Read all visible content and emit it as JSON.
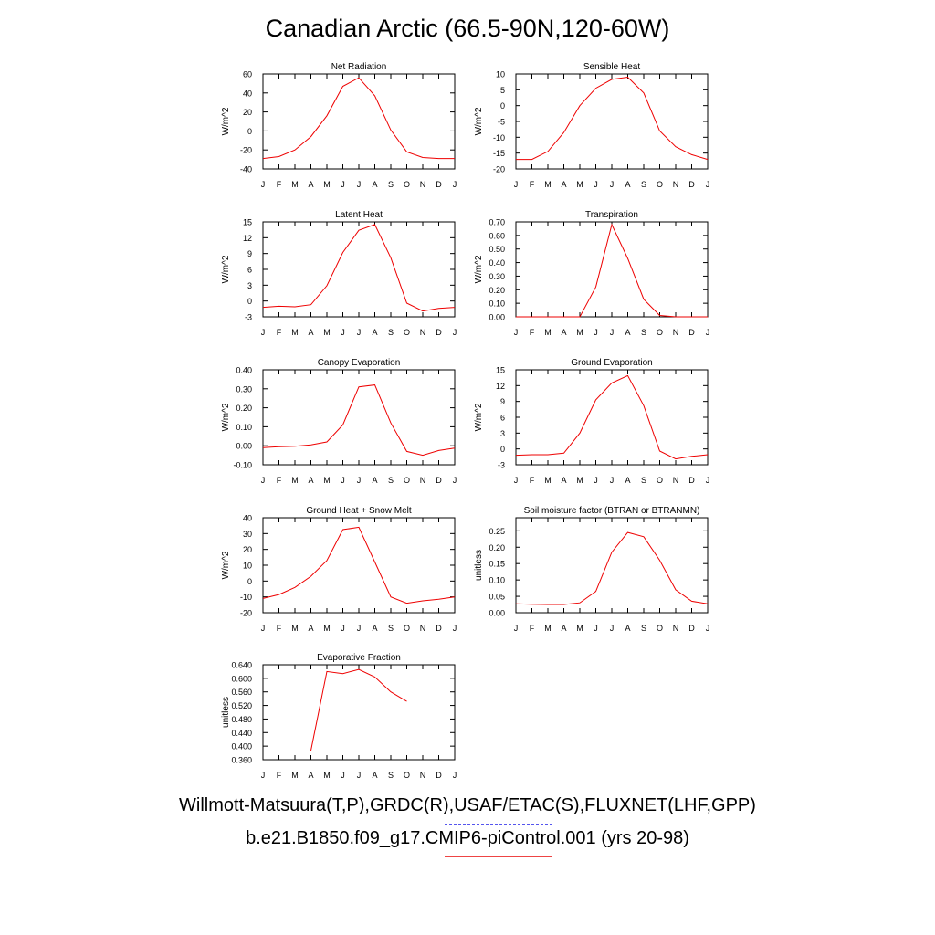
{
  "title": "Canadian Arctic (66.5-90N,120-60W)",
  "legend": {
    "observations": "Willmott-Matsuura(T,P),GRDC(R),USAF/ETAC(S),FLUXNET(LHF,GPP)",
    "observations_color": "#5555ee",
    "model": "b.e21.B1850.f09_g17.CMIP6-piControl.001 (yrs 20-98)",
    "model_color": "#ee0000"
  },
  "chart_data": [
    {
      "type": "line",
      "title": "Net Radiation",
      "ylabel": "W/m^2",
      "categories": [
        "J",
        "F",
        "M",
        "A",
        "M",
        "J",
        "J",
        "A",
        "S",
        "O",
        "N",
        "D",
        "J"
      ],
      "ylim": [
        -40,
        60
      ],
      "yticks": [
        "60",
        "40",
        "20",
        "0",
        "-20",
        "-40"
      ],
      "values": [
        -29,
        -27,
        -20,
        -6,
        16,
        47,
        56,
        37,
        1,
        -22,
        -28,
        -29,
        -29
      ]
    },
    {
      "type": "line",
      "title": "Sensible Heat",
      "ylabel": "W/m^2",
      "categories": [
        "J",
        "F",
        "M",
        "A",
        "M",
        "J",
        "J",
        "A",
        "S",
        "O",
        "N",
        "D",
        "J"
      ],
      "ylim": [
        -20,
        10
      ],
      "yticks": [
        "10",
        "5",
        "0",
        "-5",
        "-10",
        "-15",
        "-20"
      ],
      "values": [
        -17,
        -17,
        -14.5,
        -8.5,
        0,
        5.5,
        8.3,
        9,
        4,
        -8,
        -13,
        -15.5,
        -17
      ]
    },
    {
      "type": "line",
      "title": "Latent Heat",
      "ylabel": "W/m^2",
      "categories": [
        "J",
        "F",
        "M",
        "A",
        "M",
        "J",
        "J",
        "A",
        "S",
        "O",
        "N",
        "D",
        "J"
      ],
      "ylim": [
        -3,
        15
      ],
      "yticks": [
        "15",
        "12",
        "9",
        "6",
        "3",
        "0",
        "-3"
      ],
      "values": [
        -1.2,
        -1.0,
        -1.1,
        -0.7,
        2.9,
        9.2,
        13.4,
        14.5,
        8.2,
        -0.4,
        -1.9,
        -1.4,
        -1.2
      ]
    },
    {
      "type": "line",
      "title": "Transpiration",
      "ylabel": "W/m^2",
      "categories": [
        "J",
        "F",
        "M",
        "A",
        "M",
        "J",
        "J",
        "A",
        "S",
        "O",
        "N",
        "D",
        "J"
      ],
      "ylim": [
        0,
        0.7
      ],
      "yticks": [
        "0.70",
        "0.60",
        "0.50",
        "0.40",
        "0.30",
        "0.20",
        "0.10",
        "0.00"
      ],
      "values": [
        0,
        0,
        0,
        0,
        0,
        0.22,
        0.68,
        0.43,
        0.13,
        0.01,
        0,
        0,
        0
      ]
    },
    {
      "type": "line",
      "title": "Canopy Evaporation",
      "ylabel": "W/m^2",
      "categories": [
        "J",
        "F",
        "M",
        "A",
        "M",
        "J",
        "J",
        "A",
        "S",
        "O",
        "N",
        "D",
        "J"
      ],
      "ylim": [
        -0.1,
        0.4
      ],
      "yticks": [
        "0.40",
        "0.30",
        "0.20",
        "0.10",
        "0.00",
        "-0.10"
      ],
      "values": [
        -0.01,
        -0.005,
        -0.003,
        0.005,
        0.02,
        0.11,
        0.31,
        0.32,
        0.12,
        -0.03,
        -0.05,
        -0.025,
        -0.012
      ]
    },
    {
      "type": "line",
      "title": "Ground Evaporation",
      "ylabel": "W/m^2",
      "categories": [
        "J",
        "F",
        "M",
        "A",
        "M",
        "J",
        "J",
        "A",
        "S",
        "O",
        "N",
        "D",
        "J"
      ],
      "ylim": [
        -3,
        15
      ],
      "yticks": [
        "15",
        "12",
        "9",
        "6",
        "3",
        "0",
        "-3"
      ],
      "values": [
        -1.2,
        -1.1,
        -1.1,
        -0.8,
        3,
        9.3,
        12.5,
        13.9,
        8.2,
        -0.4,
        -1.9,
        -1.4,
        -1.1
      ]
    },
    {
      "type": "line",
      "title": "Ground Heat + Snow Melt",
      "ylabel": "W/m^2",
      "categories": [
        "J",
        "F",
        "M",
        "A",
        "M",
        "J",
        "J",
        "A",
        "S",
        "O",
        "N",
        "D",
        "J"
      ],
      "ylim": [
        -20,
        40
      ],
      "yticks": [
        "40",
        "30",
        "20",
        "10",
        "0",
        "-10",
        "-20"
      ],
      "values": [
        -11,
        -8.5,
        -4,
        3,
        13,
        32.5,
        34,
        12,
        -10,
        -14,
        -12.5,
        -11.5,
        -10
      ]
    },
    {
      "type": "line",
      "title": "Soil moisture factor (BTRAN or BTRANMN)",
      "ylabel": "unitless",
      "categories": [
        "J",
        "F",
        "M",
        "A",
        "M",
        "J",
        "J",
        "A",
        "S",
        "O",
        "N",
        "D",
        "J"
      ],
      "ylim": [
        0,
        0.29
      ],
      "yticks": [
        "0.25",
        "0.20",
        "0.15",
        "0.10",
        "0.05",
        "0.00"
      ],
      "values": [
        0.027,
        0.026,
        0.025,
        0.025,
        0.03,
        0.065,
        0.185,
        0.245,
        0.232,
        0.16,
        0.07,
        0.035,
        0.027
      ]
    },
    {
      "type": "line",
      "title": "Evaporative Fraction",
      "ylabel": "unitless",
      "categories": [
        "J",
        "F",
        "M",
        "A",
        "M",
        "J",
        "J",
        "A",
        "S",
        "O",
        "N",
        "D",
        "J"
      ],
      "ylim": [
        0.36,
        0.64
      ],
      "yticks": [
        "0.640",
        "0.600",
        "0.560",
        "0.520",
        "0.480",
        "0.440",
        "0.400",
        "0.360"
      ],
      "values": [
        null,
        null,
        null,
        0.387,
        0.62,
        0.614,
        0.626,
        0.604,
        0.56,
        0.532,
        null,
        null,
        null
      ]
    }
  ]
}
